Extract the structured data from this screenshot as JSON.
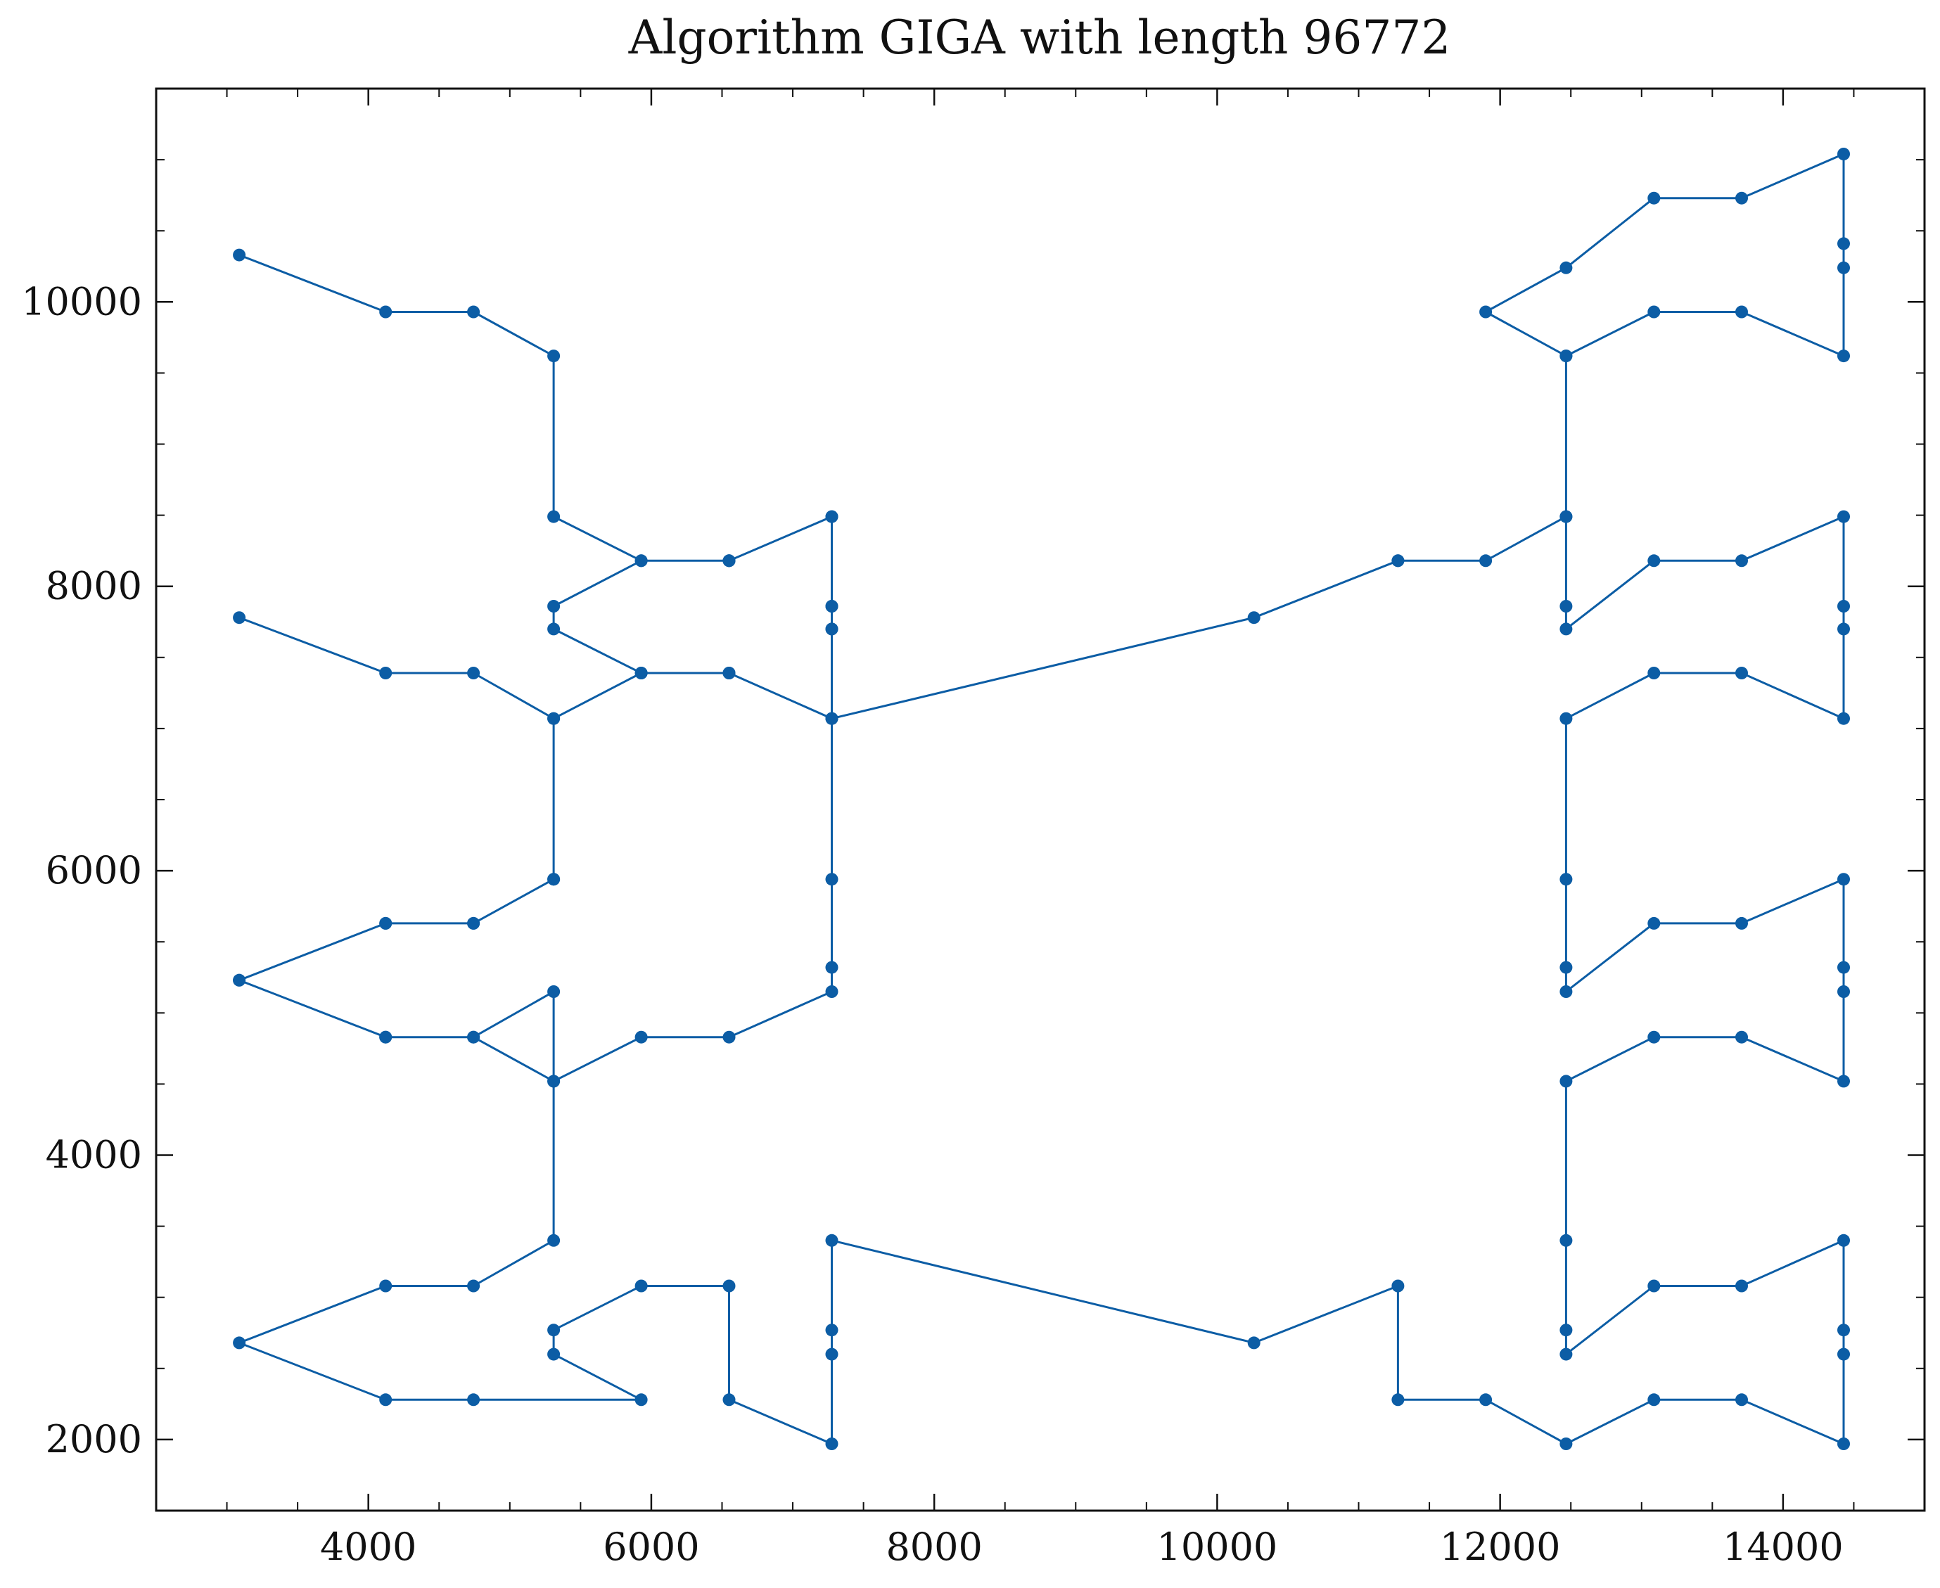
{
  "chart_data": {
    "type": "line",
    "title": "Algorithm GIGA with length 96772",
    "xlabel": "",
    "ylabel": "",
    "xlim": [
      2500,
      15000
    ],
    "ylim": [
      1500,
      11500
    ],
    "xticks": [
      4000,
      6000,
      8000,
      10000,
      12000,
      14000
    ],
    "yticks": [
      2000,
      4000,
      6000,
      8000,
      10000
    ],
    "xminor_step": 500,
    "yminor_step": 500,
    "grid": false,
    "line_color": "#0C5DA5",
    "markers": true,
    "x": [
      3087,
      4122,
      4743,
      5310,
      5310,
      5929,
      6550,
      6550,
      7276,
      7276,
      7276,
      7276,
      10260,
      11278,
      11278,
      11898,
      12466,
      12466,
      11898,
      12466,
      13087,
      13707,
      14428,
      14428,
      14428,
      14428,
      13707,
      13087,
      12466,
      12466,
      12466,
      12466,
      13087,
      13707,
      14428,
      14428,
      14428,
      14428,
      13707,
      13087,
      12466,
      12466,
      12466,
      12466,
      13087,
      13707,
      14428,
      14428,
      14428,
      14428,
      13707,
      13087,
      12466,
      12466,
      12466,
      12466,
      13087,
      13707,
      14428,
      14428,
      14428,
      14428,
      13707,
      13087,
      12466,
      11898,
      11278,
      11278,
      10260,
      7276,
      7276,
      7276,
      7276,
      6550,
      6550,
      5929,
      5310,
      5310,
      5929,
      4743,
      4122,
      3087,
      4122,
      4743,
      5310,
      5310,
      4743,
      4122,
      3087,
      4122,
      4743,
      5310,
      5310,
      5929,
      6550,
      7276,
      7276,
      7276,
      7276,
      6550,
      5929,
      5310,
      5310,
      5929,
      6550,
      7276,
      7276,
      7276,
      7276,
      6550,
      5929,
      5310,
      5310,
      4743,
      4122,
      3087,
      4122,
      4743,
      5310,
      5310,
      4743,
      4122,
      3087
    ],
    "y": [
      10330,
      9930,
      9930,
      9620,
      8490,
      8180,
      8180,
      8180,
      8490,
      7860,
      7700,
      7070,
      7780,
      8180,
      8180,
      8180,
      8490,
      9620,
      9930,
      10240,
      10730,
      10730,
      11040,
      10410,
      10240,
      9620,
      9930,
      9930,
      9620,
      8490,
      7860,
      7700,
      8180,
      8180,
      8490,
      7860,
      7700,
      7070,
      7390,
      7390,
      7070,
      5940,
      5320,
      5150,
      5630,
      5630,
      5940,
      5320,
      5150,
      4520,
      4830,
      4830,
      4520,
      3400,
      2770,
      2600,
      3080,
      3080,
      3400,
      2770,
      2600,
      1970,
      2280,
      2280,
      1970,
      2280,
      2280,
      3080,
      2680,
      3400,
      2770,
      2600,
      1970,
      2280,
      3080,
      3080,
      2770,
      2600,
      2280,
      2280,
      2280,
      2680,
      3080,
      3080,
      3400,
      4520,
      4830,
      4830,
      5230,
      5630,
      5630,
      5940,
      7070,
      7390,
      7390,
      7070,
      7700,
      7860,
      8490,
      8180,
      8180,
      7860,
      7700,
      7390,
      7390,
      7070,
      5940,
      5320,
      5150,
      4830,
      4830,
      4520,
      5150,
      4830,
      4830,
      5230,
      5630,
      5630,
      5940,
      7070,
      7390,
      7390,
      7780
    ]
  }
}
